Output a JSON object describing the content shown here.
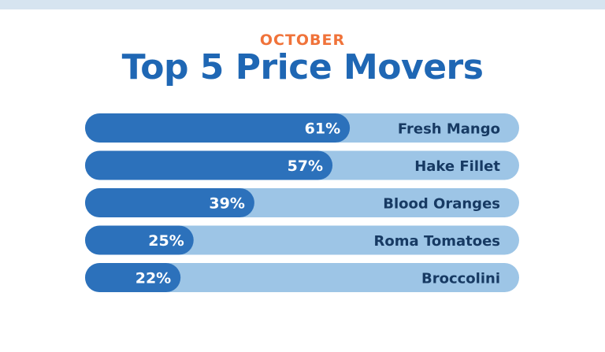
{
  "header": {
    "kicker": "OCTOBER",
    "title": "Top 5 Price Movers"
  },
  "colors": {
    "kicker": "#f0733a",
    "title": "#1f67b4",
    "bar_track": "#9dc5e6",
    "bar_fill": "#2c71bb",
    "value_text": "#ffffff",
    "category_text": "#173a63"
  },
  "chart_data": {
    "type": "bar",
    "orientation": "horizontal",
    "title": "Top 5 Price Movers",
    "subtitle": "OCTOBER",
    "categories": [
      "Fresh Mango",
      "Hake Fillet",
      "Blood Oranges",
      "Roma Tomatoes",
      "Broccolini"
    ],
    "values": [
      61,
      57,
      39,
      25,
      22
    ],
    "value_labels": [
      "61%",
      "57%",
      "39%",
      "25%",
      "22%"
    ],
    "unit": "%",
    "xlim": [
      0,
      100
    ],
    "grid": false,
    "legend": "none"
  }
}
